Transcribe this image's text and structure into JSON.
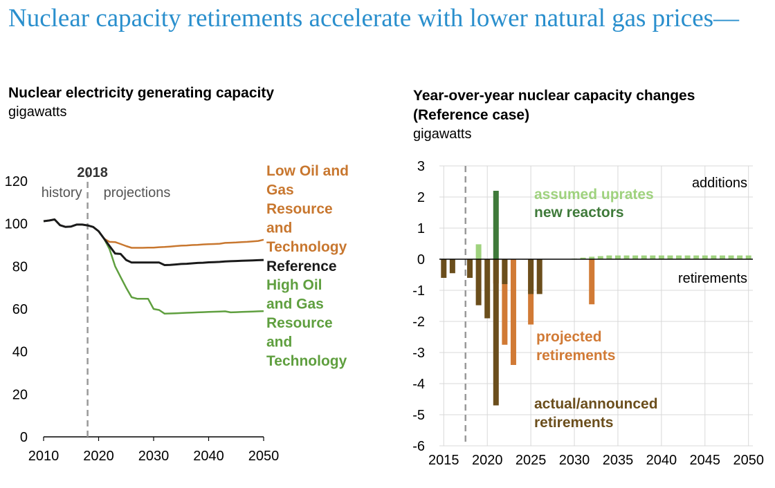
{
  "title": "Nuclear capacity retirements accelerate with lower natural gas prices—",
  "colors": {
    "title": "#2a8fcd",
    "reference": "#1a1a1a",
    "low_oil_gas": "#c8772f",
    "high_oil_gas": "#5f9f3f",
    "actual_announced": "#6b4e1c",
    "projected": "#d17a35",
    "new_reactors": "#3f7a3a",
    "uprates": "#9fd27e",
    "axis": "#000000",
    "grid": "#d8d8d8",
    "divider": "#999999"
  },
  "chart_data": [
    {
      "type": "line",
      "title": "Nuclear electricity generating capacity",
      "unit": "gigawatts",
      "xlim": [
        2010,
        2050
      ],
      "ylim": [
        0,
        120
      ],
      "x_ticks": [
        2010,
        2020,
        2030,
        2040,
        2050
      ],
      "y_ticks": [
        0,
        20,
        40,
        60,
        80,
        100,
        120
      ],
      "divider": {
        "x": 2018,
        "label": "2018",
        "left_label": "history",
        "right_label": "projections"
      },
      "grid": false,
      "series": [
        {
          "name": "Low Oil and Gas Resource and Technology",
          "key": "low_oil_gas",
          "label_lines": [
            "Low Oil and",
            "Gas",
            "Resource",
            "and",
            "Technology"
          ],
          "x": [
            2010,
            2011,
            2012,
            2013,
            2014,
            2015,
            2016,
            2017,
            2018,
            2019,
            2020,
            2021,
            2022,
            2023,
            2024,
            2025,
            2026,
            2027,
            2028,
            2029,
            2030,
            2031,
            2032,
            2033,
            2034,
            2035,
            2036,
            2037,
            2038,
            2039,
            2040,
            2041,
            2042,
            2043,
            2044,
            2045,
            2046,
            2047,
            2048,
            2049,
            2050
          ],
          "y": [
            101.2,
            101.5,
            102,
            99.3,
            98.5,
            98.7,
            99.6,
            99.6,
            99.2,
            98.5,
            96.5,
            93,
            91.5,
            91.4,
            90.5,
            89.5,
            88.7,
            88.7,
            88.7,
            88.8,
            88.8,
            89,
            89.1,
            89.3,
            89.5,
            89.7,
            89.8,
            90,
            90.1,
            90.3,
            90.4,
            90.5,
            90.6,
            91,
            91.1,
            91.2,
            91.4,
            91.5,
            91.7,
            91.9,
            92.5
          ]
        },
        {
          "name": "Reference",
          "key": "reference",
          "label_lines": [
            "Reference"
          ],
          "x": [
            2010,
            2011,
            2012,
            2013,
            2014,
            2015,
            2016,
            2017,
            2018,
            2019,
            2020,
            2021,
            2022,
            2023,
            2024,
            2025,
            2026,
            2027,
            2028,
            2029,
            2030,
            2031,
            2032,
            2033,
            2034,
            2035,
            2036,
            2037,
            2038,
            2039,
            2040,
            2041,
            2042,
            2043,
            2044,
            2045,
            2046,
            2047,
            2048,
            2049,
            2050
          ],
          "y": [
            101.2,
            101.5,
            102,
            99.3,
            98.5,
            98.7,
            99.6,
            99.6,
            99.2,
            98.5,
            96.5,
            93,
            89.5,
            86,
            85.8,
            83,
            81.8,
            81.8,
            81.8,
            81.8,
            81.8,
            81.8,
            80.6,
            80.7,
            80.9,
            81.1,
            81.2,
            81.4,
            81.6,
            81.7,
            81.9,
            82,
            82.1,
            82.3,
            82.4,
            82.5,
            82.6,
            82.7,
            82.8,
            82.9,
            83
          ]
        },
        {
          "name": "High Oil and Gas Resource and Technology",
          "key": "high_oil_gas",
          "label_lines": [
            "High Oil",
            "and Gas",
            "Resource",
            "and",
            "Technology"
          ],
          "x": [
            2010,
            2011,
            2012,
            2013,
            2014,
            2015,
            2016,
            2017,
            2018,
            2019,
            2020,
            2021,
            2022,
            2023,
            2024,
            2025,
            2026,
            2027,
            2028,
            2029,
            2030,
            2031,
            2032,
            2033,
            2034,
            2035,
            2036,
            2037,
            2038,
            2039,
            2040,
            2041,
            2042,
            2043,
            2044,
            2045,
            2046,
            2047,
            2048,
            2049,
            2050
          ],
          "y": [
            101.2,
            101.5,
            102,
            99.3,
            98.5,
            98.7,
            99.6,
            99.6,
            99.2,
            98.5,
            96.5,
            93,
            88,
            80,
            75,
            70,
            65.5,
            64.8,
            64.8,
            64.8,
            60,
            59.5,
            57.8,
            57.9,
            58,
            58.1,
            58.2,
            58.3,
            58.4,
            58.5,
            58.6,
            58.7,
            58.8,
            58.9,
            58.4,
            58.5,
            58.6,
            58.7,
            58.8,
            58.9,
            59
          ]
        }
      ]
    },
    {
      "type": "bar",
      "title": "Year-over-year nuclear capacity changes (Reference case)",
      "title_lines": [
        "Year-over-year nuclear capacity changes",
        "(Reference case)"
      ],
      "unit": "gigawatts",
      "xlim": [
        2014.5,
        2050.5
      ],
      "ylim": [
        -6,
        3
      ],
      "x_ticks": [
        2015,
        2020,
        2025,
        2030,
        2035,
        2040,
        2045,
        2050
      ],
      "y_ticks": [
        3,
        2,
        1,
        0,
        -1,
        -2,
        -3,
        -4,
        -5,
        -6
      ],
      "y_tick_labels": [
        "3",
        "2",
        "1",
        "0",
        "-1",
        "-2",
        "-3",
        "-4",
        "-5",
        "-6"
      ],
      "divider": {
        "x": 2017.5
      },
      "grid": true,
      "annotations": {
        "additions": "additions",
        "retirements": "retirements"
      },
      "series": [
        {
          "name": "actual/announced retirements",
          "key": "actual_announced",
          "label_lines": [
            "actual/announced",
            "retirements"
          ],
          "points": [
            [
              2015,
              -0.6
            ],
            [
              2016,
              -0.45
            ],
            [
              2018,
              -0.6
            ],
            [
              2019,
              -1.48
            ],
            [
              2020,
              -1.9
            ],
            [
              2021,
              -4.7
            ],
            [
              2022,
              -0.8
            ],
            [
              2025,
              -1.12
            ],
            [
              2026,
              -1.12
            ]
          ]
        },
        {
          "name": "projected retirements",
          "key": "projected",
          "label_lines": [
            "projected",
            "retirements"
          ],
          "points": [
            [
              2021,
              -0.78
            ],
            [
              2022,
              -2.75
            ],
            [
              2023,
              -3.4
            ],
            [
              2025,
              -2.1
            ],
            [
              2032,
              -1.45
            ]
          ]
        },
        {
          "name": "new reactors",
          "key": "new_reactors",
          "label_lines": [
            "new reactors"
          ],
          "points": [
            [
              2021,
              2.2
            ]
          ]
        },
        {
          "name": "assumed uprates",
          "key": "uprates",
          "label_lines": [
            "assumed uprates"
          ],
          "points": [
            [
              2019,
              0.48
            ],
            [
              2030,
              0.02
            ],
            [
              2031,
              0.05
            ],
            [
              2032,
              0.08
            ],
            [
              2033,
              0.1
            ],
            [
              2034,
              0.12
            ],
            [
              2035,
              0.12
            ],
            [
              2036,
              0.12
            ],
            [
              2037,
              0.12
            ],
            [
              2038,
              0.12
            ],
            [
              2039,
              0.12
            ],
            [
              2040,
              0.12
            ],
            [
              2041,
              0.12
            ],
            [
              2042,
              0.12
            ],
            [
              2043,
              0.12
            ],
            [
              2044,
              0.12
            ],
            [
              2045,
              0.12
            ],
            [
              2046,
              0.12
            ],
            [
              2047,
              0.12
            ],
            [
              2048,
              0.12
            ],
            [
              2049,
              0.12
            ],
            [
              2050,
              0.12
            ]
          ]
        }
      ]
    }
  ]
}
